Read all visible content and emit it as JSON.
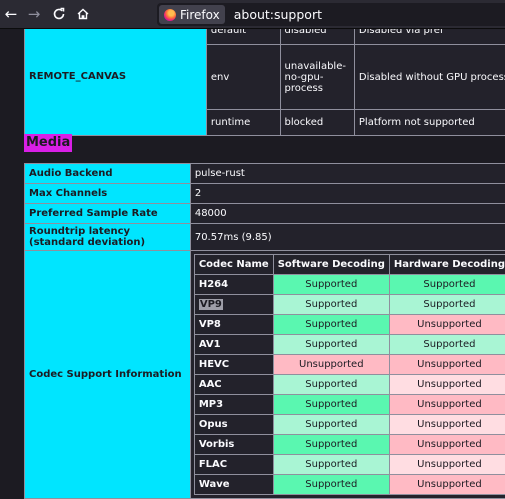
{
  "browser": {
    "identity_label": "Firefox",
    "url": "about:support"
  },
  "graphics_remote_canvas": {
    "label": "REMOTE_CANVAS",
    "rows": [
      {
        "backend": "default",
        "status": "disabled",
        "message": "Disabled via pref"
      },
      {
        "backend": "env",
        "status": "unavailable-no-gpu-process",
        "message": "Disabled without GPU process"
      },
      {
        "backend": "runtime",
        "status": "blocked",
        "message": "Platform not supported"
      }
    ]
  },
  "media": {
    "heading": "Media",
    "rows": [
      {
        "label": "Audio Backend",
        "value": "pulse-rust"
      },
      {
        "label": "Max Channels",
        "value": "2"
      },
      {
        "label": "Preferred Sample Rate",
        "value": "48000"
      },
      {
        "label": "Roundtrip latency (standard deviation)",
        "value": "70.57ms (9.85)"
      }
    ],
    "codec_label": "Codec Support Information",
    "codec_headers": [
      "Codec Name",
      "Software Decoding",
      "Hardware Decoding"
    ],
    "codecs": [
      {
        "name": "H264",
        "software": "Supported",
        "hardware": "Supported"
      },
      {
        "name": "VP9",
        "software": "Supported",
        "hardware": "Supported"
      },
      {
        "name": "VP8",
        "software": "Supported",
        "hardware": "Unsupported"
      },
      {
        "name": "AV1",
        "software": "Supported",
        "hardware": "Supported"
      },
      {
        "name": "HEVC",
        "software": "Unsupported",
        "hardware": "Unsupported"
      },
      {
        "name": "AAC",
        "software": "Supported",
        "hardware": "Unsupported"
      },
      {
        "name": "MP3",
        "software": "Supported",
        "hardware": "Unsupported"
      },
      {
        "name": "Opus",
        "software": "Supported",
        "hardware": "Unsupported"
      },
      {
        "name": "Vorbis",
        "software": "Supported",
        "hardware": "Unsupported"
      },
      {
        "name": "FLAC",
        "software": "Supported",
        "hardware": "Unsupported"
      },
      {
        "name": "Wave",
        "software": "Supported",
        "hardware": "Unsupported"
      }
    ]
  },
  "colors": {
    "label_bg": "#00e5ff",
    "heading_bg": "#d91fe6",
    "supported": "#5af7b0",
    "unsupported": "#ffbac4"
  }
}
